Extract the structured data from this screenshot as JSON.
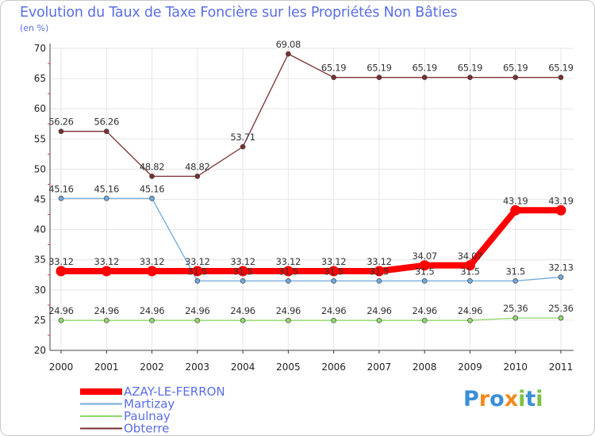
{
  "chart_data": {
    "type": "line",
    "title": "Evolution du Taux de Taxe Foncière sur les Propriétés Non Bâties",
    "ylabel": "(en %)",
    "xlabel": "",
    "x": [
      2000,
      2001,
      2002,
      2003,
      2004,
      2005,
      2006,
      2007,
      2008,
      2009,
      2010,
      2011
    ],
    "ylim": [
      20,
      70
    ],
    "yticks": [
      20,
      25,
      30,
      35,
      40,
      45,
      50,
      55,
      60,
      65,
      70
    ],
    "grid": true,
    "legend_position": "bottom-left",
    "series": [
      {
        "name": "AZAY-LE-FERRON",
        "color": "#ff0000",
        "values": [
          33.12,
          33.12,
          33.12,
          33.12,
          33.12,
          33.12,
          33.12,
          33.12,
          34.07,
          34.07,
          43.19,
          43.19
        ],
        "labels": [
          "33.12",
          "33.12",
          "33.12",
          "33.12",
          "33.12",
          "33.12",
          "33.12",
          "33.12",
          "34.07",
          "34.07",
          "43.19",
          "43.19"
        ]
      },
      {
        "name": "Martizay",
        "color": "#6fa8dc",
        "values": [
          45.16,
          45.16,
          45.16,
          31.5,
          31.5,
          31.5,
          31.5,
          31.5,
          31.5,
          31.5,
          31.5,
          32.13
        ],
        "labels": [
          "45.16",
          "45.16",
          "45.16",
          "31.5",
          "31.5",
          "31.5",
          "31.5",
          "31.5",
          "31.5",
          "31.5",
          "31.5",
          "32.13"
        ]
      },
      {
        "name": "Paulnay",
        "color": "#8fd96b",
        "values": [
          24.96,
          24.96,
          24.96,
          24.96,
          24.96,
          24.96,
          24.96,
          24.96,
          24.96,
          24.96,
          25.36,
          25.36
        ],
        "labels": [
          "24.96",
          "24.96",
          "24.96",
          "24.96",
          "24.96",
          "24.96",
          "24.96",
          "24.96",
          "24.96",
          "24.96",
          "25.36",
          "25.36"
        ]
      },
      {
        "name": "Obterre",
        "color": "#7a2e2e",
        "values": [
          56.26,
          56.26,
          48.82,
          48.82,
          53.71,
          69.08,
          65.19,
          65.19,
          65.19,
          65.19,
          65.19,
          65.19
        ],
        "labels": [
          "56.26",
          "56.26",
          "48.82",
          "48.82",
          "53.71",
          "69.08",
          "65.19",
          "65.19",
          "65.19",
          "65.19",
          "65.19",
          "65.19"
        ]
      }
    ]
  },
  "logo": {
    "letters": [
      "P",
      "r",
      "o",
      "x",
      "i",
      "t",
      "i"
    ],
    "colors": [
      "#3a8fd6",
      "#f08a1c",
      "#3a8fd6",
      "#f08a1c",
      "#7cc242",
      "#3a8fd6",
      "#7cc242"
    ]
  }
}
